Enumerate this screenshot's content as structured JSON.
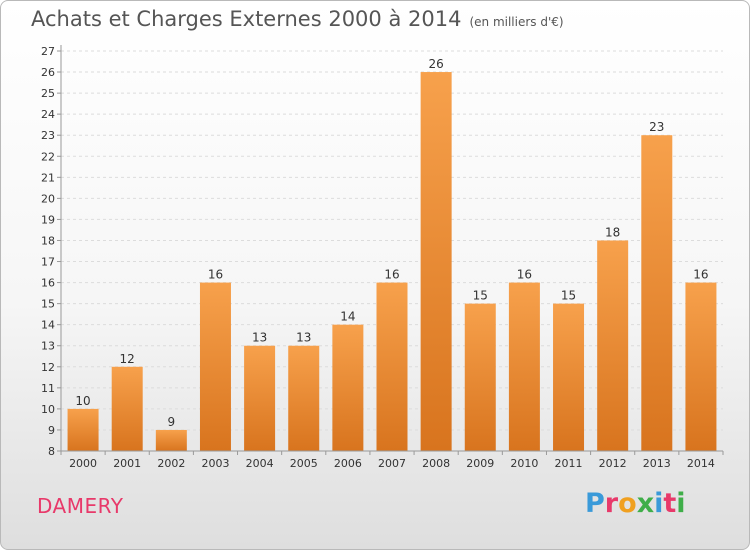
{
  "chart_data": {
    "type": "bar",
    "title": "Achats et Charges Externes 2000 à 2014",
    "subtitle": "(en milliers d'€)",
    "categories": [
      "2000",
      "2001",
      "2002",
      "2003",
      "2004",
      "2005",
      "2006",
      "2007",
      "2008",
      "2009",
      "2010",
      "2011",
      "2012",
      "2013",
      "2014"
    ],
    "values": [
      10,
      12,
      9,
      16,
      13,
      13,
      14,
      16,
      26,
      15,
      16,
      15,
      18,
      23,
      16
    ],
    "ylim": [
      8,
      27
    ],
    "yticks": [
      8,
      9,
      10,
      11,
      12,
      13,
      14,
      15,
      16,
      17,
      18,
      19,
      20,
      21,
      22,
      23,
      24,
      25,
      26,
      27
    ],
    "grid": true,
    "bar_color": "#f0923a"
  },
  "footer": {
    "city": "DAMERY",
    "brand": "Proxiti",
    "brand_colors": [
      "#3a9ad9",
      "#e8396a",
      "#f0a020",
      "#3fae49",
      "#3a9ad9",
      "#e8396a",
      "#3fae49"
    ]
  }
}
